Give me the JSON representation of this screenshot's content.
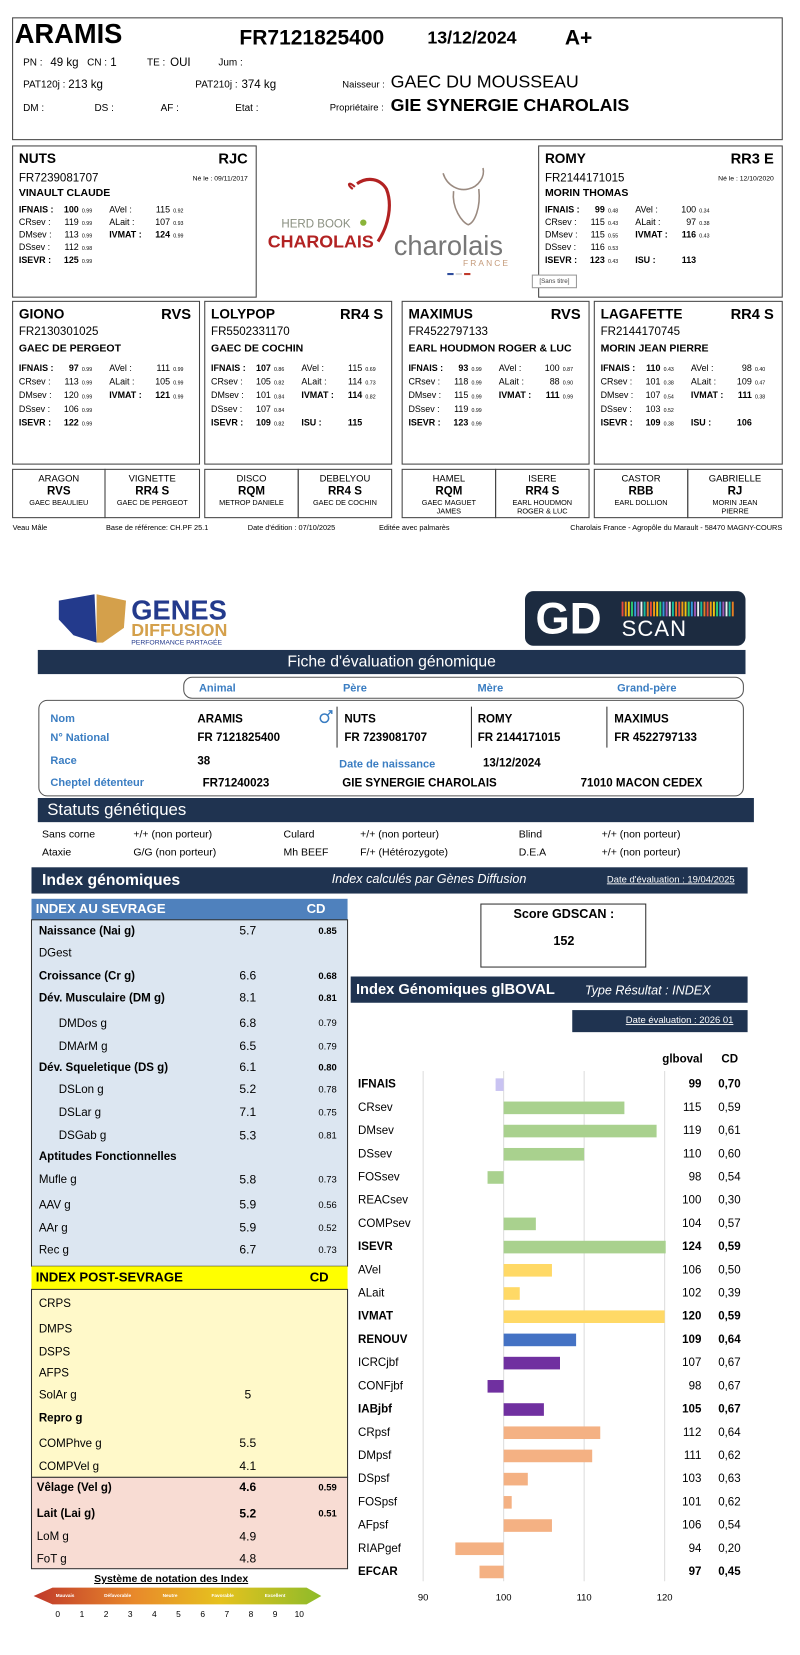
{
  "certificate": {
    "header": {
      "name": "ARAMIS",
      "id": "FR7121825400",
      "date": "13/12/2024",
      "grade": "A+",
      "fields": [
        {
          "label": "PN :",
          "value": "49 kg"
        },
        {
          "label": "CN :",
          "value": "1"
        },
        {
          "label": "TE :",
          "value": "OUI"
        },
        {
          "label": "Jum :"
        },
        {
          "label": "PAT120j :",
          "value": "213 kg"
        },
        {
          "label": "PAT210j :",
          "value": "374 kg"
        },
        {
          "label": "Naisseur :",
          "value": "GAEC DU MOUSSEAU"
        },
        {
          "label": "DM :"
        },
        {
          "label": "DS :"
        },
        {
          "label": "AF :"
        },
        {
          "label": "Etat :"
        },
        {
          "label": "Propriétaire :",
          "value": "GIE SYNERGIE CHAROLAIS"
        }
      ]
    },
    "parents": [
      {
        "name": "NUTS",
        "grade": "RJC",
        "id": "FR7239081707",
        "born": "Né le : 09/11/2017",
        "owner": "VINAULT CLAUDE",
        "left": [
          [
            "IFNAIS :",
            "100",
            "0.99"
          ],
          [
            "CRsev :",
            "119",
            "0.99"
          ],
          [
            "DMsev :",
            "113",
            "0.99"
          ],
          [
            "DSsev :",
            "112",
            "0.98"
          ],
          [
            "ISEVR :",
            "125",
            "0.99"
          ]
        ],
        "right": [
          [
            "AVel :",
            "115",
            "0.92"
          ],
          [
            "ALait :",
            "107",
            "0.93"
          ],
          [
            "IVMAT :",
            "124",
            "0.99"
          ]
        ]
      },
      {
        "name": "ROMY",
        "grade": "RR3 E",
        "id": "FR2144171015",
        "born": "Né le : 12/10/2020",
        "owner": "MORIN THOMAS",
        "left": [
          [
            "IFNAIS :",
            "99",
            "0.48"
          ],
          [
            "CRsev :",
            "115",
            "0.43"
          ],
          [
            "DMsev :",
            "115",
            "0.55"
          ],
          [
            "DSsev :",
            "116",
            "0.53"
          ],
          [
            "ISEVR :",
            "123",
            "0.43"
          ]
        ],
        "right": [
          [
            "AVel :",
            "100",
            "0.34"
          ],
          [
            "ALait :",
            "97",
            "0.38"
          ],
          [
            "IVMAT :",
            "116",
            "0.43"
          ],
          [
            "ISU :",
            "113"
          ]
        ]
      }
    ],
    "grandparents": [
      {
        "name": "GIONO",
        "grade": "RVS",
        "id": "FR2130301025",
        "owner": "GAEC DE PERGEOT",
        "left": [
          [
            "IFNAIS :",
            "97",
            "0.99"
          ],
          [
            "CRsev :",
            "113",
            "0.99"
          ],
          [
            "DMsev :",
            "120",
            "0.99"
          ],
          [
            "DSsev :",
            "106",
            "0.99"
          ],
          [
            "ISEVR :",
            "122",
            "0.99"
          ]
        ],
        "right": [
          [
            "AVel :",
            "111",
            "0.99"
          ],
          [
            "ALait :",
            "105",
            "0.99"
          ],
          [
            "IVMAT :",
            "121",
            "0.99"
          ]
        ]
      },
      {
        "name": "LOLYPOP",
        "grade": "RR4 S",
        "id": "FR5502331170",
        "owner": "GAEC DE COCHIN",
        "left": [
          [
            "IFNAIS :",
            "107",
            "0.86"
          ],
          [
            "CRsev :",
            "105",
            "0.82"
          ],
          [
            "DMsev :",
            "101",
            "0.84"
          ],
          [
            "DSsev :",
            "107",
            "0.84"
          ],
          [
            "ISEVR :",
            "109",
            "0.82"
          ]
        ],
        "right": [
          [
            "AVel :",
            "115",
            "0.69"
          ],
          [
            "ALait :",
            "114",
            "0.73"
          ],
          [
            "IVMAT :",
            "114",
            "0.82"
          ],
          [
            "ISU :",
            "115"
          ]
        ]
      },
      {
        "name": "MAXIMUS",
        "grade": "RVS",
        "id": "FR4522797133",
        "owner": "EARL HOUDMON ROGER & LUC",
        "left": [
          [
            "IFNAIS :",
            "93",
            "0.99"
          ],
          [
            "CRsev :",
            "118",
            "0.99"
          ],
          [
            "DMsev :",
            "115",
            "0.99"
          ],
          [
            "DSsev :",
            "119",
            "0.99"
          ],
          [
            "ISEVR :",
            "123",
            "0.99"
          ]
        ],
        "right": [
          [
            "AVel :",
            "100",
            "0.87"
          ],
          [
            "ALait :",
            "88",
            "0.90"
          ],
          [
            "IVMAT :",
            "111",
            "0.99"
          ]
        ]
      },
      {
        "name": "LAGAFETTE",
        "grade": "RR4 S",
        "id": "FR2144170745",
        "owner": "MORIN JEAN PIERRE",
        "left": [
          [
            "IFNAIS :",
            "110",
            "0.43"
          ],
          [
            "CRsev :",
            "101",
            "0.38"
          ],
          [
            "DMsev :",
            "107",
            "0.54"
          ],
          [
            "DSsev :",
            "103",
            "0.52"
          ],
          [
            "ISEVR :",
            "109",
            "0.38"
          ]
        ],
        "right": [
          [
            "AVel :",
            "98",
            "0.40"
          ],
          [
            "ALait :",
            "109",
            "0.47"
          ],
          [
            "IVMAT :",
            "111",
            "0.38"
          ],
          [
            "ISU :",
            "106"
          ]
        ]
      }
    ],
    "great_grandparents": [
      {
        "name": "ARAGON",
        "grade": "RVS",
        "owner": [
          "GAEC BEAULIEU"
        ]
      },
      {
        "name": "VIGNETTE",
        "grade": "RR4 S",
        "owner": [
          "GAEC DE PERGEOT"
        ]
      },
      {
        "name": "DISCO",
        "grade": "RQM",
        "owner": [
          "METROP DANIELE"
        ]
      },
      {
        "name": "DEBELYOU",
        "grade": "RR4 S",
        "owner": [
          "GAEC DE COCHIN"
        ]
      },
      {
        "name": "HAMEL",
        "grade": "RQM",
        "owner": [
          "GAEC MAGUET",
          "JAMES"
        ]
      },
      {
        "name": "ISERE",
        "grade": "RR4 S",
        "owner": [
          "EARL HOUDMON",
          "ROGER & LUC"
        ]
      },
      {
        "name": "CASTOR",
        "grade": "RBB",
        "owner": [
          "EARL DOLLION"
        ]
      },
      {
        "name": "GABRIELLE",
        "grade": "RJ",
        "owner": [
          "MORIN JEAN",
          "PIERRE"
        ]
      }
    ],
    "footer": [
      "Veau Mâle",
      "Base de référence: CH.PF 25.1",
      "Date d'édition : 07/10/2025",
      "Editée avec palmarès",
      "Charolais France - Agropôle du Marault - 58470 MAGNY-COURS"
    ],
    "logos": {
      "herd_book": "HERD BOOK",
      "charolais_red": "CHAROLAIS",
      "charolais": "charolais",
      "france": "FRANCE",
      "caption": "[Sans titre]"
    }
  },
  "gdscan": {
    "logo": {
      "genes": "GENES",
      "diffusion": "DIFFUSION",
      "tagline": "PERFORMANCE PARTAGÉE",
      "gd": "GD",
      "scan": "SCAN"
    },
    "title": "Fiche d'évaluation génomique",
    "tabs": [
      "Animal",
      "Père",
      "Mère",
      "Grand-père"
    ],
    "identity": {
      "rows": [
        {
          "label": "Nom",
          "cells": [
            "ARAMIS",
            "NUTS",
            "ROMY",
            "MAXIMUS"
          ]
        },
        {
          "label": "N° National",
          "cells": [
            "FR 7121825400",
            "FR 7239081707",
            "FR 2144171015",
            "FR 4522797133"
          ]
        }
      ],
      "race": {
        "label": "Race",
        "value": "38"
      },
      "birth": {
        "label": "Date de naissance",
        "value": "13/12/2024"
      },
      "herd": {
        "label": "Cheptel détenteur",
        "cells": [
          "FR71240023",
          "GIE SYNERGIE CHAROLAIS",
          "71010 MACON CEDEX"
        ]
      }
    },
    "statuts": {
      "title": "Statuts génétiques",
      "items": [
        {
          "label": "Sans corne",
          "value": "+/+ (non porteur)"
        },
        {
          "label": "Culard",
          "value": "+/+ (non porteur)"
        },
        {
          "label": "Blind",
          "value": "+/+ (non porteur)"
        },
        {
          "label": "Ataxie",
          "value": "G/G (non porteur)"
        },
        {
          "label": "Mh BEEF",
          "value": "F/+ (Hétérozygote)"
        },
        {
          "label": "D.E.A",
          "value": "+/+ (non porteur)"
        }
      ]
    },
    "index": {
      "title": "Index génomiques",
      "subtitle": "Index calculés par Gènes Diffusion",
      "date": "Date d'évaluation : 19/04/2025"
    },
    "sevrage": {
      "title": "INDEX AU SEVRAGE",
      "cd": "CD",
      "rows": [
        {
          "label": "Naissance (Nai g)",
          "value": "5.7",
          "cd": "0.85"
        },
        {
          "label": "DGest"
        },
        {
          "label": "Croissance (Cr g)",
          "value": "6.6",
          "cd": "0.68"
        },
        {
          "label": "Dév. Musculaire (DM g)",
          "value": "8.1",
          "cd": "0.81"
        },
        {
          "label": "DMDos g",
          "value": "6.8",
          "cd": "0.79"
        },
        {
          "label": "DMArM g",
          "value": "6.5",
          "cd": "0.79"
        },
        {
          "label": "Dév. Squeletique (DS g)",
          "value": "6.1",
          "cd": "0.80"
        },
        {
          "label": "DSLon g",
          "value": "5.2",
          "cd": "0.78"
        },
        {
          "label": "DSLar g",
          "value": "7.1",
          "cd": "0.75"
        },
        {
          "label": "DSGab g",
          "value": "5.3",
          "cd": "0.81"
        },
        {
          "label": "Aptitudes Fonctionnelles"
        },
        {
          "label": "Mufle g",
          "value": "5.8",
          "cd": "0.73"
        },
        {
          "label": "AAV g",
          "value": "5.9",
          "cd": "0.56"
        },
        {
          "label": "AAr g",
          "value": "5.9",
          "cd": "0.52"
        },
        {
          "label": "Rec g",
          "value": "6.7",
          "cd": "0.73"
        }
      ]
    },
    "post_sevrage": {
      "title": "INDEX POST-SEVRAGE",
      "cd": "CD",
      "rows": [
        {
          "label": "CRPS"
        },
        {
          "label": "DMPS"
        },
        {
          "label": "DSPS"
        },
        {
          "label": "AFPS"
        },
        {
          "label": "SolAr g",
          "value": "5"
        },
        {
          "label": "Repro g"
        },
        {
          "label": "COMPhve g",
          "value": "5.5"
        },
        {
          "label": "COMPVel g",
          "value": "4.1"
        }
      ]
    },
    "repro": {
      "rows": [
        {
          "label": "Vêlage (Vel g)",
          "value": "4.6",
          "cd": "0.59"
        },
        {
          "label": "Lait (Lai g)",
          "value": "5.2",
          "cd": "0.51"
        },
        {
          "label": "LoM g",
          "value": "4.9"
        },
        {
          "label": "FoT g",
          "value": "4.8"
        }
      ]
    },
    "scale": {
      "title": "Système de notation des Index",
      "levels": [
        "Mauvais",
        "Défavorable",
        "Neutre",
        "Favorable",
        "Excellent"
      ],
      "numbers": [
        0,
        1,
        2,
        3,
        4,
        5,
        6,
        7,
        8,
        9,
        10
      ]
    },
    "score": {
      "label": "Score GDSCAN :",
      "value": "152"
    },
    "glboval": {
      "title": "Index Génomiques glBOVAL",
      "type": "Type Résultat : INDEX",
      "date": "Date évaluation : 2026 01",
      "col_value": "glboval",
      "col_cd": "CD",
      "chart": {
        "type": "bar",
        "categories": [
          "IFNAIS",
          "CRsev",
          "DMsev",
          "DSsev",
          "FOSsev",
          "REACsev",
          "COMPsev",
          "ISEVR",
          "AVel",
          "ALait",
          "IVMAT",
          "RENOUV",
          "ICRCjbf",
          "CONFjbf",
          "IABjbf",
          "CRpsf",
          "DMpsf",
          "DSpsf",
          "FOSpsf",
          "AFpsf",
          "RIAPgef",
          "EFCAR"
        ],
        "values": [
          99,
          115,
          119,
          110,
          98,
          100,
          104,
          124,
          106,
          102,
          120,
          109,
          107,
          98,
          105,
          112,
          111,
          103,
          101,
          106,
          94,
          97
        ],
        "cd": [
          "0,70",
          "0,59",
          "0,61",
          "0,60",
          "0,54",
          "0,30",
          "0,57",
          "0,59",
          "0,50",
          "0,39",
          "0,59",
          "0,64",
          "0,67",
          "0,67",
          "0,67",
          "0,64",
          "0,62",
          "0,63",
          "0,62",
          "0,54",
          "0,20",
          "0,45"
        ],
        "colors": [
          "#c9c3f2",
          "#a9d18e",
          "#a9d18e",
          "#a9d18e",
          "#a9d18e",
          "#a9d18e",
          "#a9d18e",
          "#a9d18e",
          "#ffd966",
          "#ffd966",
          "#ffd966",
          "#4472c4",
          "#7030a0",
          "#7030a0",
          "#7030a0",
          "#f4b183",
          "#f4b183",
          "#f4b183",
          "#f4b183",
          "#f4b183",
          "#f4b183",
          "#f4b183"
        ],
        "bar_base": 100,
        "xlim": [
          90,
          120
        ],
        "xticks": [
          90,
          100,
          110,
          120
        ],
        "grid": true
      }
    }
  }
}
